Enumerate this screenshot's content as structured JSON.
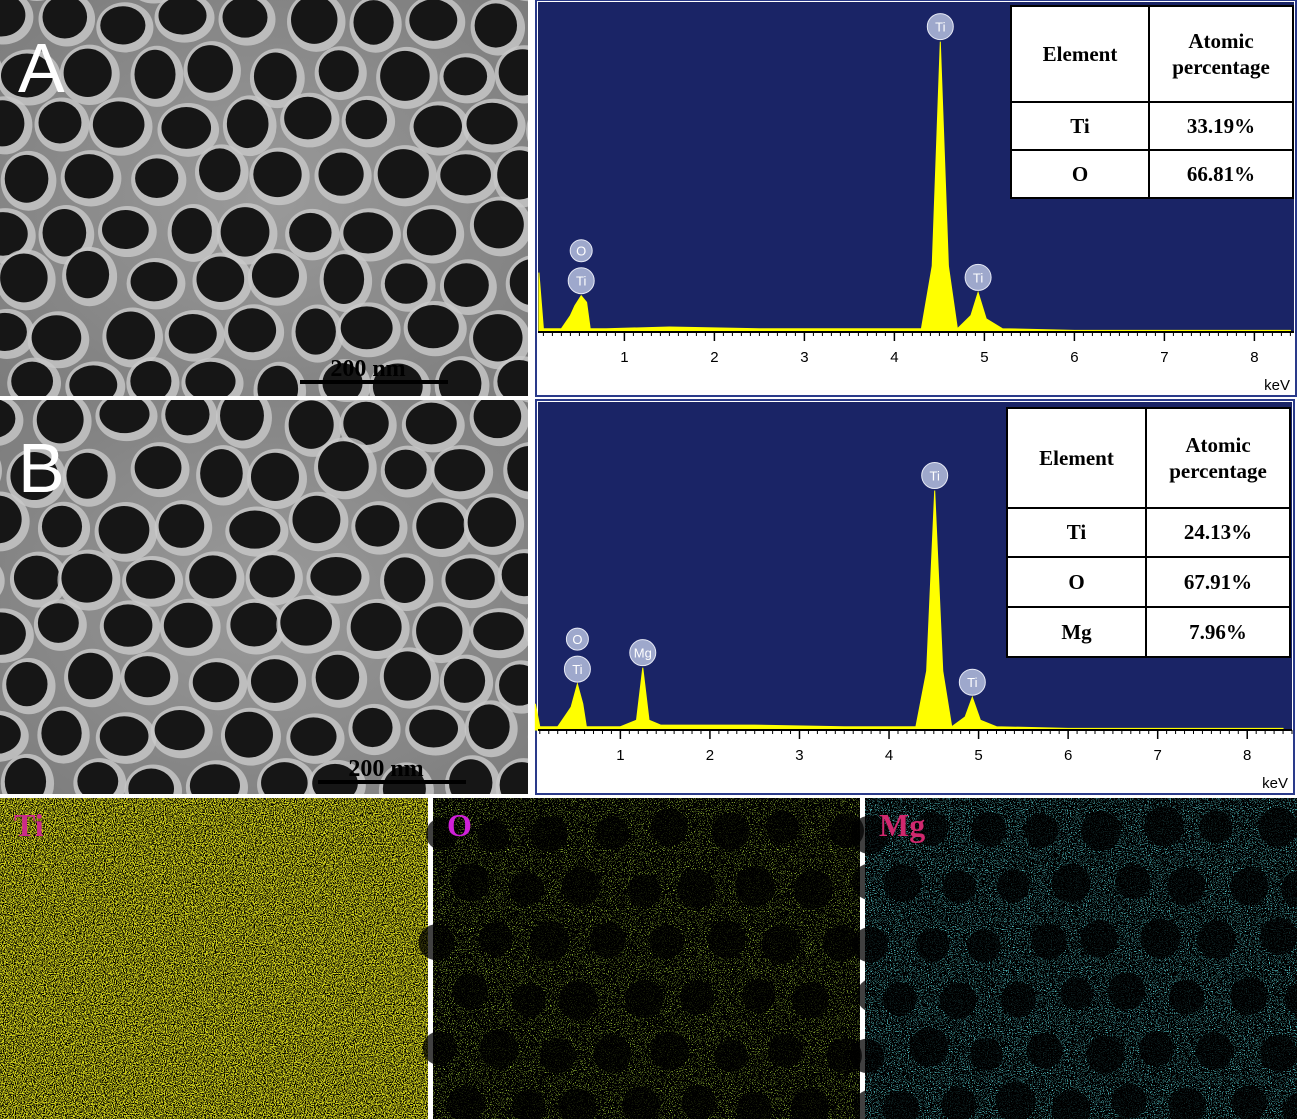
{
  "panels": [
    {
      "label": "A",
      "scale_bar": "200 nm"
    },
    {
      "label": "B",
      "scale_bar": "200 nm"
    }
  ],
  "tables": [
    {
      "header": [
        "Element",
        "Atomic percentage"
      ],
      "rows": [
        [
          "Ti",
          "33.19%"
        ],
        [
          "O",
          "66.81%"
        ]
      ]
    },
    {
      "header": [
        "Element",
        "Atomic percentage"
      ],
      "rows": [
        [
          "Ti",
          "24.13%"
        ],
        [
          "O",
          "67.91%"
        ],
        [
          "Mg",
          "7.96%"
        ]
      ]
    }
  ],
  "maps": [
    {
      "label": "Ti"
    },
    {
      "label": "O"
    },
    {
      "label": "Mg"
    }
  ],
  "chart_data": [
    {
      "type": "line",
      "x": [
        0.05,
        0.1,
        0.3,
        0.4,
        0.45,
        0.52,
        0.58,
        0.62,
        0.8,
        1.5,
        2.5,
        3.5,
        4.3,
        4.42,
        4.51,
        4.6,
        4.7,
        4.85,
        4.93,
        5.02,
        5.2,
        6,
        8.4
      ],
      "values": [
        18,
        1,
        1,
        5,
        8,
        11,
        9,
        1,
        1,
        1.5,
        1,
        1,
        1,
        20,
        88,
        20,
        1,
        5,
        12,
        4,
        1,
        0.5,
        0.5
      ],
      "color": "#ffff00",
      "background": "#1a2466",
      "xlim": [
        0.04,
        8.44
      ],
      "ylim": [
        0,
        100
      ],
      "xticks": [
        1,
        2,
        3,
        4,
        5,
        6,
        7,
        8
      ],
      "xlabel": "keV",
      "annotations": [
        {
          "text": "Ti",
          "x": 0.52
        },
        {
          "text": "O",
          "x": 0.52
        },
        {
          "text": "Ti",
          "x": 4.51
        },
        {
          "text": "Ti",
          "x": 4.93
        }
      ]
    },
    {
      "type": "line",
      "x": [
        0.05,
        0.1,
        0.3,
        0.4,
        0.45,
        0.52,
        0.58,
        0.62,
        1.0,
        1.18,
        1.25,
        1.32,
        1.45,
        2.5,
        3.5,
        4.3,
        4.42,
        4.51,
        4.6,
        4.7,
        4.85,
        4.93,
        5.02,
        5.2,
        6,
        8.4
      ],
      "values": [
        8,
        1,
        1,
        5,
        7,
        14,
        8,
        1,
        1,
        3,
        19,
        3,
        1.5,
        1.5,
        1,
        1,
        18,
        73,
        18,
        1,
        4,
        10,
        3,
        1,
        0.5,
        0.5
      ],
      "color": "#ffff00",
      "background": "#1a2466",
      "xlim": [
        0.08,
        8.5
      ],
      "ylim": [
        0,
        100
      ],
      "xticks": [
        1,
        2,
        3,
        4,
        5,
        6,
        7,
        8
      ],
      "xlabel": "keV",
      "annotations": [
        {
          "text": "Ti",
          "x": 0.52
        },
        {
          "text": "O",
          "x": 0.52
        },
        {
          "text": "Mg",
          "x": 1.25
        },
        {
          "text": "Ti",
          "x": 4.51
        },
        {
          "text": "Ti",
          "x": 4.93
        }
      ]
    }
  ]
}
